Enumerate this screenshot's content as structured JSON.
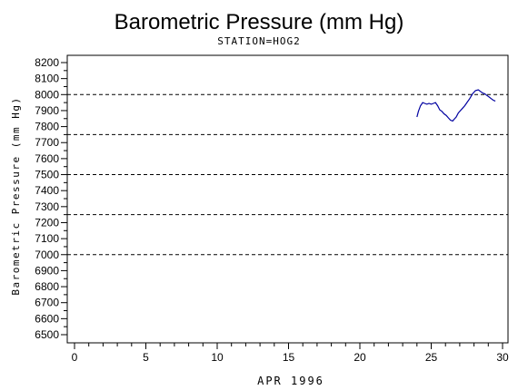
{
  "chart_data": {
    "type": "line",
    "title": "Barometric Pressure (mm Hg)",
    "subtitle": "STATION=HOG2",
    "xlabel": "APR 1996",
    "ylabel": "Barometric Pressure (mm Hg)",
    "xlim": [
      0,
      30
    ],
    "ylim": [
      6450,
      8250
    ],
    "x_ticks": [
      "0",
      "5",
      "10",
      "15",
      "20",
      "25",
      "30"
    ],
    "y_ticks": [
      "6500",
      "6600",
      "6700",
      "6800",
      "6900",
      "7000",
      "7100",
      "7200",
      "7300",
      "7400",
      "7500",
      "7600",
      "7700",
      "7800",
      "7900",
      "8000",
      "8100",
      "8200"
    ],
    "reference_lines": [
      7000,
      7250,
      7500,
      7750,
      8000
    ],
    "grid": false,
    "legend": "none",
    "line_color": "#0000a0",
    "series": [
      {
        "x": [
          24.0,
          24.1,
          24.25,
          24.4,
          24.55,
          24.7,
          24.85,
          25.0,
          25.15,
          25.3,
          25.45,
          25.6,
          25.75,
          25.9,
          26.05,
          26.2,
          26.35,
          26.5,
          26.6,
          26.75,
          26.9,
          27.05,
          27.2,
          27.35,
          27.5,
          27.7,
          27.9,
          28.1,
          28.3,
          28.45,
          28.6,
          28.75,
          28.9,
          29.05,
          29.2,
          29.35,
          29.5
        ],
        "y": [
          7860,
          7895,
          7930,
          7950,
          7945,
          7940,
          7945,
          7940,
          7945,
          7950,
          7930,
          7905,
          7895,
          7880,
          7870,
          7855,
          7840,
          7835,
          7845,
          7860,
          7885,
          7900,
          7915,
          7930,
          7950,
          7975,
          8005,
          8025,
          8030,
          8020,
          8010,
          8005,
          7995,
          7985,
          7975,
          7965,
          7960
        ]
      }
    ]
  }
}
